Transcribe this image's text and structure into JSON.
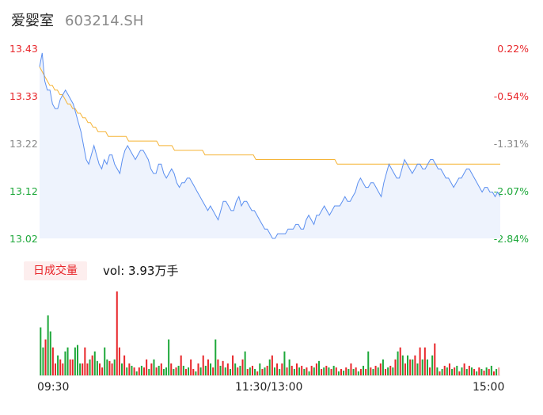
{
  "header": {
    "name": "爱婴室",
    "code": "603214.SH"
  },
  "volume_panel": {
    "tab_label": "日成交量",
    "vol_prefix": "vol: ",
    "vol_value": "3.93万手"
  },
  "colors": {
    "price_line": "#5b8ff0",
    "avg_line": "#f5b335",
    "area_fill": "#eef3fd",
    "up": "#e8262a",
    "down": "#1ea83a",
    "neutral": "#888888",
    "axis": "#e5e5e5"
  },
  "chart_data": [
    {
      "type": "line",
      "title": "",
      "ylim": [
        13.02,
        13.43
      ],
      "y_ticks_left": [
        "13.43",
        "13.33",
        "13.22",
        "13.12",
        "13.02"
      ],
      "y_ticks_right": [
        "0.22%",
        "-0.54%",
        "-1.31%",
        "-2.07%",
        "-2.84%"
      ],
      "x_ticks": [
        "09:30",
        "11:30/13:00",
        "15:00"
      ],
      "series": [
        {
          "values": [
            13.39,
            13.42,
            13.36,
            13.34,
            13.34,
            13.31,
            13.3,
            13.3,
            13.32,
            13.33,
            13.34,
            13.33,
            13.32,
            13.31,
            13.29,
            13.27,
            13.25,
            13.22,
            13.19,
            13.18,
            13.2,
            13.22,
            13.2,
            13.18,
            13.17,
            13.19,
            13.18,
            13.2,
            13.2,
            13.18,
            13.17,
            13.16,
            13.19,
            13.21,
            13.22,
            13.21,
            13.2,
            13.19,
            13.2,
            13.21,
            13.21,
            13.2,
            13.19,
            13.17,
            13.16,
            13.16,
            13.18,
            13.18,
            13.16,
            13.15,
            13.16,
            13.17,
            13.16,
            13.14,
            13.13,
            13.14,
            13.14,
            13.15,
            13.15,
            13.14,
            13.13,
            13.12,
            13.11,
            13.1,
            13.09,
            13.08,
            13.09,
            13.08,
            13.07,
            13.06,
            13.08,
            13.1,
            13.1,
            13.09,
            13.08,
            13.08,
            13.1,
            13.11,
            13.09,
            13.1,
            13.1,
            13.09,
            13.08,
            13.08,
            13.07,
            13.06,
            13.05,
            13.04,
            13.04,
            13.03,
            13.02,
            13.02,
            13.03,
            13.03,
            13.03,
            13.03,
            13.04,
            13.04,
            13.04,
            13.05,
            13.05,
            13.04,
            13.04,
            13.06,
            13.07,
            13.06,
            13.05,
            13.07,
            13.07,
            13.08,
            13.09,
            13.08,
            13.07,
            13.08,
            13.09,
            13.09,
            13.09,
            13.1,
            13.11,
            13.1,
            13.1,
            13.11,
            13.12,
            13.14,
            13.15,
            13.14,
            13.13,
            13.13,
            13.14,
            13.14,
            13.13,
            13.12,
            13.11,
            13.14,
            13.16,
            13.18,
            13.17,
            13.16,
            13.15,
            13.15,
            13.17,
            13.19,
            13.18,
            13.17,
            13.16,
            13.17,
            13.18,
            13.18,
            13.17,
            13.17,
            13.18,
            13.19,
            13.19,
            13.18,
            13.17,
            13.17,
            13.16,
            13.15,
            13.15,
            13.14,
            13.13,
            13.14,
            13.15,
            13.15,
            13.16,
            13.17,
            13.17,
            13.16,
            13.15,
            13.14,
            13.13,
            13.12,
            13.13,
            13.13,
            13.12,
            13.12,
            13.11,
            13.12,
            13.11
          ]
        },
        {
          "values": [
            13.39,
            13.38,
            13.37,
            13.36,
            13.35,
            13.35,
            13.34,
            13.34,
            13.33,
            13.33,
            13.32,
            13.31,
            13.31,
            13.3,
            13.3,
            13.29,
            13.29,
            13.28,
            13.28,
            13.27,
            13.27,
            13.26,
            13.26,
            13.25,
            13.25,
            13.25,
            13.25,
            13.24,
            13.24,
            13.24,
            13.24,
            13.24,
            13.24,
            13.24,
            13.24,
            13.23,
            13.23,
            13.23,
            13.23,
            13.23,
            13.23,
            13.23,
            13.23,
            13.23,
            13.23,
            13.23,
            13.23,
            13.22,
            13.22,
            13.22,
            13.22,
            13.22,
            13.22,
            13.21,
            13.21,
            13.21,
            13.21,
            13.21,
            13.21,
            13.21,
            13.21,
            13.21,
            13.21,
            13.21,
            13.21,
            13.2,
            13.2,
            13.2,
            13.2,
            13.2,
            13.2,
            13.2,
            13.2,
            13.2,
            13.2,
            13.2,
            13.2,
            13.2,
            13.2,
            13.2,
            13.2,
            13.2,
            13.2,
            13.2,
            13.2,
            13.19,
            13.19,
            13.19,
            13.19,
            13.19,
            13.19,
            13.19,
            13.19,
            13.19,
            13.19,
            13.19,
            13.19,
            13.19,
            13.19,
            13.19,
            13.19,
            13.19,
            13.19,
            13.19,
            13.19,
            13.19,
            13.19,
            13.19,
            13.19,
            13.19,
            13.19,
            13.19,
            13.19,
            13.19,
            13.19,
            13.19,
            13.19,
            13.18,
            13.18,
            13.18,
            13.18,
            13.18,
            13.18,
            13.18,
            13.18,
            13.18,
            13.18,
            13.18,
            13.18,
            13.18,
            13.18,
            13.18,
            13.18,
            13.18,
            13.18,
            13.18,
            13.18,
            13.18,
            13.18,
            13.18,
            13.18,
            13.18,
            13.18,
            13.18,
            13.18,
            13.18,
            13.18,
            13.18,
            13.18,
            13.18,
            13.18,
            13.18,
            13.18,
            13.18,
            13.18,
            13.18,
            13.18,
            13.18,
            13.18,
            13.18,
            13.18,
            13.18,
            13.18,
            13.18,
            13.18,
            13.18,
            13.18,
            13.18,
            13.18,
            13.18,
            13.18,
            13.18,
            13.18,
            13.18,
            13.18,
            13.18,
            13.18,
            13.18,
            13.18,
            13.18,
            13.18,
            13.18
          ]
        }
      ]
    },
    {
      "type": "bar",
      "title": "",
      "ylim": [
        0,
        105
      ],
      "values": [
        60,
        35,
        45,
        75,
        55,
        35,
        15,
        25,
        20,
        15,
        30,
        35,
        20,
        20,
        35,
        38,
        15,
        15,
        35,
        15,
        20,
        25,
        30,
        18,
        15,
        10,
        35,
        20,
        18,
        15,
        20,
        105,
        35,
        15,
        25,
        10,
        15,
        12,
        10,
        5,
        10,
        12,
        10,
        20,
        8,
        15,
        20,
        10,
        12,
        15,
        8,
        10,
        45,
        15,
        8,
        10,
        12,
        25,
        12,
        8,
        10,
        20,
        8,
        5,
        15,
        10,
        25,
        12,
        20,
        15,
        10,
        45,
        20,
        12,
        18,
        10,
        15,
        8,
        25,
        15,
        10,
        12,
        20,
        30,
        8,
        10,
        12,
        8,
        5,
        15,
        8,
        10,
        12,
        20,
        25,
        10,
        15,
        8,
        15,
        30,
        10,
        20,
        12,
        8,
        15,
        10,
        12,
        8,
        10,
        5,
        12,
        10,
        15,
        18,
        8,
        10,
        12,
        10,
        8,
        12,
        10,
        5,
        8,
        6,
        10,
        8,
        15,
        8,
        10,
        5,
        8,
        12,
        8,
        30,
        10,
        8,
        12,
        10,
        15,
        20,
        8,
        10,
        12,
        10,
        20,
        30,
        35,
        25,
        15,
        25,
        20,
        20,
        25,
        15,
        35,
        20,
        35,
        20,
        10,
        25,
        40,
        10,
        5,
        8,
        12,
        10,
        15,
        8,
        10,
        12,
        5,
        10,
        15,
        8,
        12,
        10,
        8,
        5,
        10,
        8,
        6,
        10,
        8,
        12,
        5,
        8,
        10
      ],
      "directions": [
        "down",
        "down",
        "up",
        "down",
        "down",
        "up",
        "up",
        "down",
        "up",
        "up",
        "down",
        "down",
        "up",
        "up",
        "down",
        "down",
        "down",
        "up",
        "up",
        "up",
        "down",
        "up",
        "down",
        "down",
        "up",
        "up",
        "down",
        "down",
        "up",
        "up",
        "down",
        "up",
        "up",
        "down",
        "up",
        "down",
        "up",
        "down",
        "up",
        "down",
        "up",
        "down",
        "up",
        "up",
        "down",
        "up",
        "down",
        "up",
        "down",
        "up",
        "down",
        "down",
        "down",
        "up",
        "down",
        "up",
        "down",
        "up",
        "down",
        "up",
        "down",
        "up",
        "up",
        "down",
        "up",
        "down",
        "up",
        "down",
        "up",
        "down",
        "up",
        "down",
        "up",
        "down",
        "up",
        "down",
        "up",
        "down",
        "up",
        "down",
        "up",
        "down",
        "up",
        "down",
        "up",
        "down",
        "up",
        "down",
        "up",
        "down",
        "up",
        "down",
        "up",
        "down",
        "up",
        "down",
        "up",
        "down",
        "up",
        "down",
        "up",
        "down",
        "up",
        "down",
        "up",
        "down",
        "up",
        "down",
        "up",
        "down",
        "up",
        "down",
        "up",
        "down",
        "up",
        "down",
        "up",
        "down",
        "up",
        "down",
        "up",
        "down",
        "up",
        "down",
        "up",
        "down",
        "up",
        "down",
        "up",
        "down",
        "up",
        "down",
        "up",
        "down",
        "up",
        "down",
        "up",
        "down",
        "up",
        "down",
        "up",
        "down",
        "up",
        "down",
        "up",
        "down",
        "up",
        "down",
        "up",
        "down",
        "up",
        "down",
        "up",
        "down",
        "up",
        "down",
        "up",
        "down",
        "up",
        "down",
        "up",
        "down",
        "up",
        "down",
        "up",
        "down",
        "up",
        "down",
        "up",
        "down",
        "up",
        "down",
        "up",
        "down",
        "up",
        "down",
        "up",
        "down",
        "up",
        "down",
        "up",
        "down",
        "up",
        "down",
        "up",
        "down",
        "neutral"
      ]
    }
  ]
}
